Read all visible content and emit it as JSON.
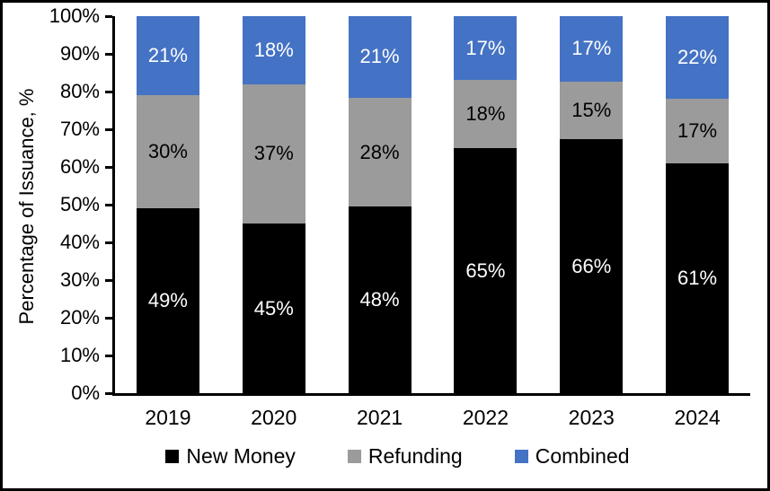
{
  "chart_data": {
    "type": "bar",
    "stacked": true,
    "title": "",
    "xlabel": "",
    "ylabel": "Percentage of Issuance, %",
    "categories": [
      "2019",
      "2020",
      "2021",
      "2022",
      "2023",
      "2024"
    ],
    "series": [
      {
        "name": "New Money",
        "color": "#000000",
        "label_color": "#ffffff",
        "values": [
          49,
          45,
          48,
          65,
          66,
          61
        ]
      },
      {
        "name": "Refunding",
        "color": "#9b9b9b",
        "label_color": "#000000",
        "values": [
          30,
          37,
          28,
          18,
          15,
          17
        ]
      },
      {
        "name": "Combined",
        "color": "#4472c4",
        "label_color": "#ffffff",
        "values": [
          21,
          18,
          21,
          17,
          17,
          22
        ]
      }
    ],
    "value_suffix": "%",
    "y_ticks": [
      "0%",
      "10%",
      "20%",
      "30%",
      "40%",
      "50%",
      "60%",
      "70%",
      "80%",
      "90%",
      "100%"
    ],
    "ylim": [
      0,
      100
    ],
    "grid": false,
    "legend_position": "bottom",
    "axis_color": "#000000",
    "background_color": "#ffffff"
  }
}
